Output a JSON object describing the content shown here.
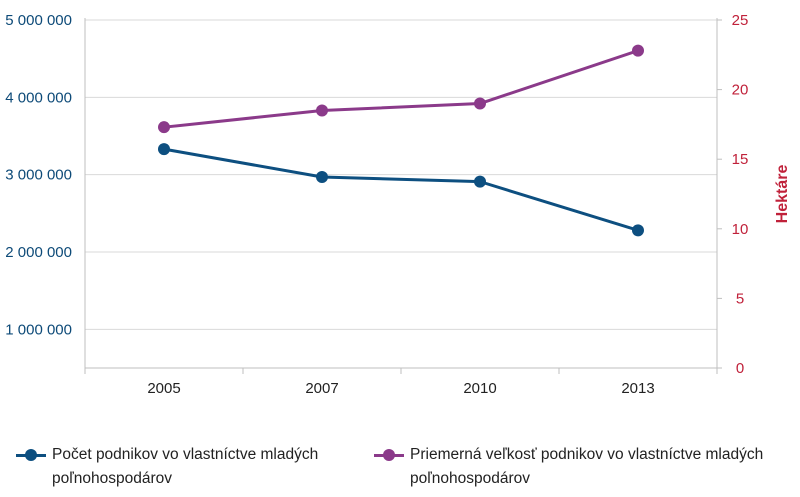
{
  "chart_data": {
    "type": "line",
    "title": "",
    "categories": [
      "2005",
      "2007",
      "2010",
      "2013"
    ],
    "left_axis": {
      "label": "",
      "ylim": [
        500000,
        5000000
      ],
      "ticks": [
        1000000,
        2000000,
        3000000,
        4000000,
        5000000
      ],
      "tick_labels": [
        "1 000 000",
        "2 000 000",
        "3 000 000",
        "4 000 000",
        "5 000 000"
      ],
      "color": "#0d4a78"
    },
    "right_axis": {
      "label": "Hektáre",
      "ylim": [
        0,
        25
      ],
      "ticks": [
        0,
        5,
        10,
        15,
        20,
        25
      ],
      "tick_labels": [
        "0",
        "5",
        "10",
        "15",
        "20",
        "25"
      ],
      "color": "#c0213a"
    },
    "series": [
      {
        "name": "Počet podnikov vo vlastníctve mladých poľnohospodárov",
        "axis": "left",
        "color": "#0d4f80",
        "values": [
          3330000,
          2970000,
          2910000,
          2280000
        ]
      },
      {
        "name": "Priemerná veľkosť podnikov vo vlastníctve mladých poľnohospodárov",
        "axis": "right",
        "color": "#8b3a8a",
        "values": [
          17.3,
          18.5,
          19.0,
          22.8
        ]
      }
    ],
    "grid": {
      "horizontal": true,
      "vertical": false
    },
    "legend_position": "bottom"
  }
}
